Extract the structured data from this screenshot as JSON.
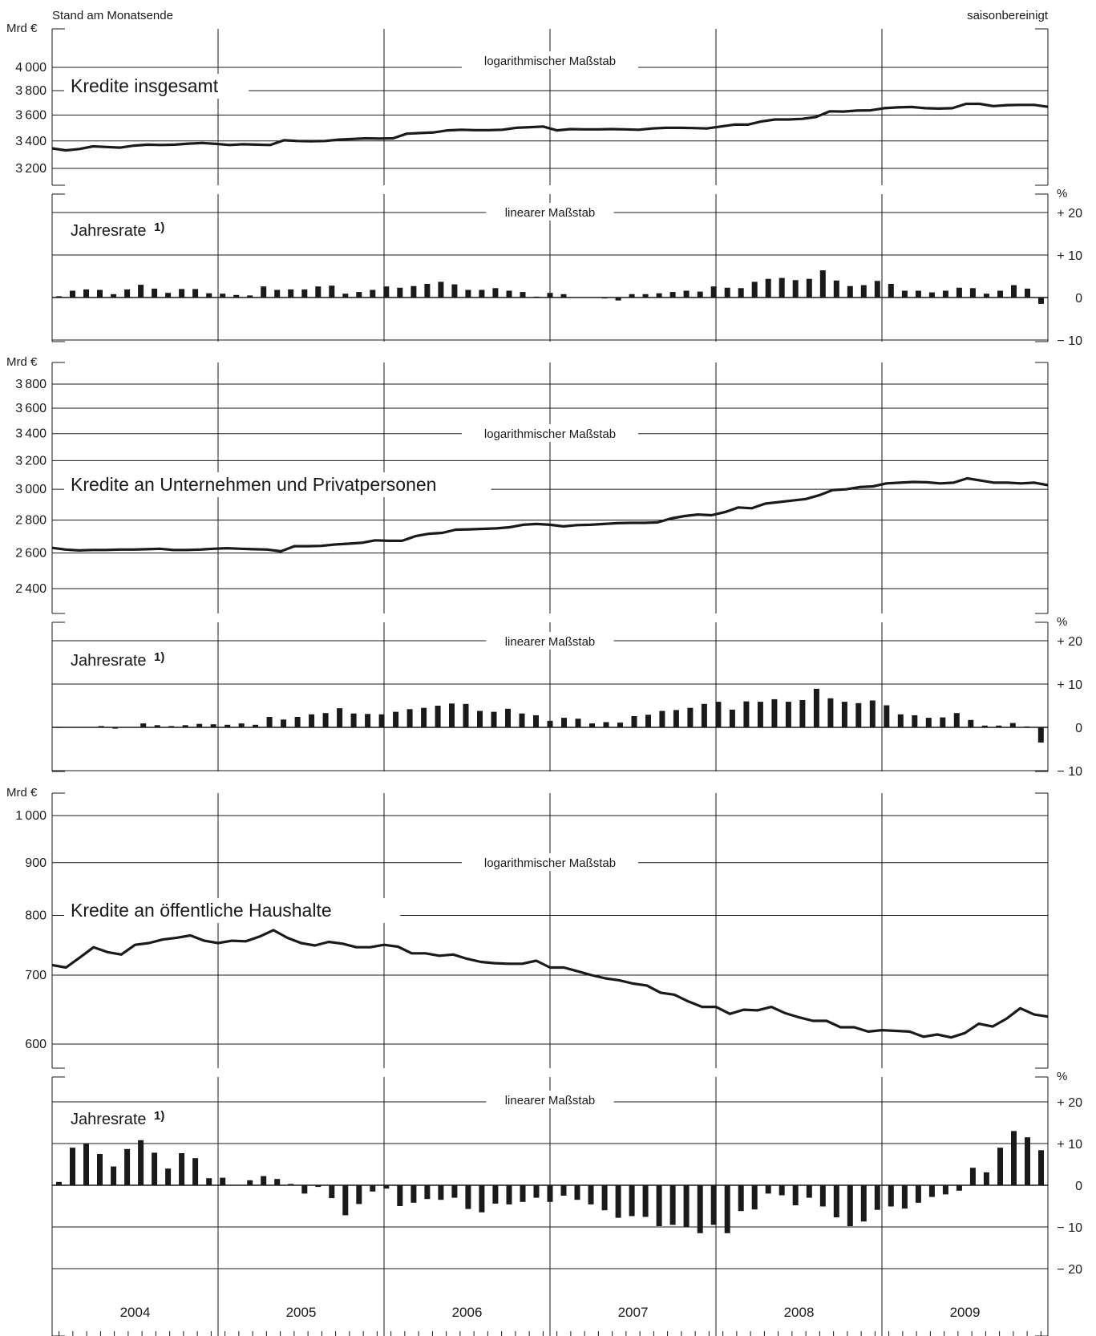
{
  "header": {
    "left": "Stand am Monatsende",
    "right": "saisonbereinigt"
  },
  "unit_level": "Mrd €",
  "unit_rate": "%",
  "scale_log": "logarithmischer Maßstab",
  "scale_lin": "linearer Maßstab",
  "rate_title": "Jahresrate",
  "rate_footnote": "1)",
  "years": [
    "2004",
    "2005",
    "2006",
    "2007",
    "2008",
    "2009"
  ],
  "colors": {
    "line": "#1a1a1a",
    "bar": "#1a1a1a",
    "grid": "#1a1a1a"
  },
  "chart_data": [
    {
      "type": "line",
      "title": "Kredite insgesamt",
      "scale": "logarithmic",
      "x_start": "2004-01",
      "x_end": "2009-12",
      "frequency": "monthly",
      "yticks": [
        3200,
        3400,
        3600,
        3800,
        4000
      ],
      "ylim": [
        3100,
        4150
      ],
      "values": [
        3345,
        3330,
        3340,
        3360,
        3355,
        3350,
        3365,
        3372,
        3370,
        3372,
        3380,
        3385,
        3378,
        3370,
        3375,
        3372,
        3370,
        3405,
        3400,
        3398,
        3400,
        3410,
        3415,
        3420,
        3418,
        3420,
        3455,
        3460,
        3465,
        3480,
        3485,
        3482,
        3482,
        3485,
        3500,
        3505,
        3510,
        3480,
        3490,
        3488,
        3488,
        3490,
        3488,
        3485,
        3495,
        3500,
        3500,
        3498,
        3495,
        3510,
        3525,
        3525,
        3550,
        3565,
        3565,
        3570,
        3585,
        3630,
        3628,
        3636,
        3638,
        3655,
        3662,
        3665,
        3655,
        3652,
        3655,
        3690,
        3690,
        3672,
        3680,
        3682,
        3682,
        3666
      ]
    },
    {
      "type": "bar",
      "title": "Jahresrate",
      "footnote": "1)",
      "scale": "linear",
      "yticks": [
        -10,
        0,
        10,
        20
      ],
      "ytick_labels": [
        "− 10",
        "0",
        "+ 10",
        "+ 20"
      ],
      "ylim": [
        -10,
        20
      ],
      "values": [
        0.3,
        1.6,
        1.9,
        1.8,
        0.8,
        1.9,
        3.0,
        2.1,
        1.1,
        2.0,
        2.0,
        1.0,
        0.9,
        0.6,
        0.5,
        2.6,
        1.8,
        1.9,
        1.9,
        2.6,
        2.8,
        0.9,
        1.3,
        1.8,
        2.6,
        2.3,
        2.7,
        3.2,
        3.7,
        3.1,
        1.8,
        1.8,
        2.2,
        1.6,
        1.3,
        0.2,
        1.1,
        0.8,
        0,
        0,
        -0.1,
        -0.7,
        0.8,
        0.8,
        1.0,
        1.3,
        1.6,
        1.4,
        2.6,
        2.3,
        2.2,
        3.7,
        4.4,
        4.6,
        4.1,
        4.4,
        6.4,
        4.0,
        2.7,
        2.9,
        3.9,
        3.2,
        1.6,
        1.6,
        1.2,
        1.6,
        2.3,
        2.2,
        0.9,
        1.6,
        2.9,
        2.1,
        -1.5
      ]
    },
    {
      "type": "line",
      "title": "Kredite an Unternehmen und Privatpersonen",
      "scale": "logarithmic",
      "x_start": "2004-01",
      "x_end": "2009-12",
      "frequency": "monthly",
      "yticks": [
        2400,
        2600,
        2800,
        3000,
        3200,
        3400,
        3600,
        3800
      ],
      "ylim": [
        2330,
        3940
      ],
      "values": [
        2630,
        2620,
        2615,
        2618,
        2618,
        2620,
        2620,
        2622,
        2625,
        2618,
        2618,
        2620,
        2625,
        2628,
        2625,
        2622,
        2620,
        2610,
        2640,
        2640,
        2642,
        2650,
        2655,
        2660,
        2675,
        2672,
        2672,
        2700,
        2715,
        2720,
        2740,
        2742,
        2745,
        2748,
        2755,
        2770,
        2775,
        2770,
        2760,
        2768,
        2770,
        2775,
        2780,
        2782,
        2782,
        2785,
        2810,
        2825,
        2835,
        2830,
        2850,
        2880,
        2875,
        2905,
        2915,
        2925,
        2935,
        2960,
        2995,
        3000,
        3015,
        3020,
        3040,
        3045,
        3050,
        3048,
        3040,
        3045,
        3075,
        3060,
        3045,
        3045,
        3040,
        3045,
        3028
      ]
    },
    {
      "type": "bar",
      "title": "Jahresrate",
      "footnote": "1)",
      "scale": "linear",
      "yticks": [
        -10,
        0,
        10,
        20
      ],
      "ytick_labels": [
        "− 10",
        "0",
        "+ 10",
        "+ 20"
      ],
      "ylim": [
        -10,
        20
      ],
      "values": [
        0.1,
        0,
        0,
        0.3,
        -0.3,
        0,
        0.9,
        0.5,
        0.3,
        0.5,
        0.8,
        0.7,
        0.6,
        0.9,
        0.6,
        2.4,
        1.8,
        2.4,
        3.0,
        3.3,
        4.4,
        3.2,
        3.1,
        3.0,
        3.6,
        4.2,
        4.5,
        5.0,
        5.5,
        5.4,
        3.8,
        3.6,
        4.3,
        3.2,
        2.8,
        1.5,
        2.2,
        2.0,
        0.9,
        1.2,
        1.1,
        2.6,
        2.9,
        3.8,
        4.0,
        4.5,
        5.4,
        5.9,
        4.1,
        6.0,
        5.9,
        6.5,
        5.9,
        6.3,
        8.9,
        6.7,
        5.9,
        5.6,
        6.2,
        5.1,
        3.0,
        2.8,
        2.2,
        2.3,
        3.3,
        1.7,
        0.4,
        0.4,
        1.0,
        0.2,
        -3.5
      ]
    },
    {
      "type": "line",
      "title": "Kredite an öffentliche Haushalte",
      "scale": "logarithmic",
      "x_start": "2004-01",
      "x_end": "2009-12",
      "frequency": "monthly",
      "yticks": [
        600,
        700,
        800,
        900,
        1000
      ],
      "ylim": [
        570,
        1030
      ],
      "values": [
        716,
        712,
        728,
        745,
        737,
        733,
        749,
        752,
        758,
        761,
        765,
        756,
        752,
        756,
        755,
        763,
        774,
        761,
        752,
        748,
        754,
        751,
        745,
        745,
        749,
        746,
        735,
        735,
        731,
        733,
        726,
        721,
        719,
        718,
        718,
        723,
        712,
        712,
        706,
        700,
        695,
        692,
        687,
        684,
        673,
        670,
        660,
        652,
        652,
        642,
        648,
        647,
        652,
        643,
        637,
        632,
        632,
        623,
        623,
        617,
        619,
        618,
        617,
        610,
        613,
        609,
        615,
        628,
        624,
        635,
        650,
        641,
        638
      ]
    },
    {
      "type": "bar",
      "title": "Jahresrate",
      "footnote": "1)",
      "scale": "linear",
      "yticks": [
        -20,
        -10,
        0,
        10,
        20
      ],
      "ytick_labels": [
        "− 20",
        "− 10",
        "0",
        "+ 10",
        "+ 20"
      ],
      "ylim": [
        -20,
        20
      ],
      "values": [
        0.8,
        9,
        10,
        7.5,
        4.5,
        8.7,
        10.8,
        7.8,
        4.0,
        7.7,
        6.5,
        1.7,
        1.8,
        0,
        1.2,
        2.2,
        1.5,
        0.3,
        -2.0,
        -0.4,
        -3.1,
        -7.2,
        -4.5,
        -1.5,
        -0.8,
        -5.0,
        -4.2,
        -3.3,
        -3.5,
        -3.0,
        -5.7,
        -6.5,
        -4.4,
        -4.6,
        -4.0,
        -3.0,
        -4.0,
        -2.5,
        -3.5,
        -4.6,
        -6.0,
        -7.8,
        -7.4,
        -7.6,
        -9.8,
        -9.5,
        -10.0,
        -11.5,
        -9.5,
        -11.5,
        -6.2,
        -5.8,
        -2.0,
        -2.4,
        -4.8,
        -3.0,
        -5.1,
        -7.7,
        -9.8,
        -8.7,
        -5.9,
        -5.1,
        -5.6,
        -4.2,
        -2.8,
        -2.2,
        -1.3,
        4.2,
        3.1,
        9.0,
        13.0,
        11.5,
        8.4
      ]
    }
  ]
}
